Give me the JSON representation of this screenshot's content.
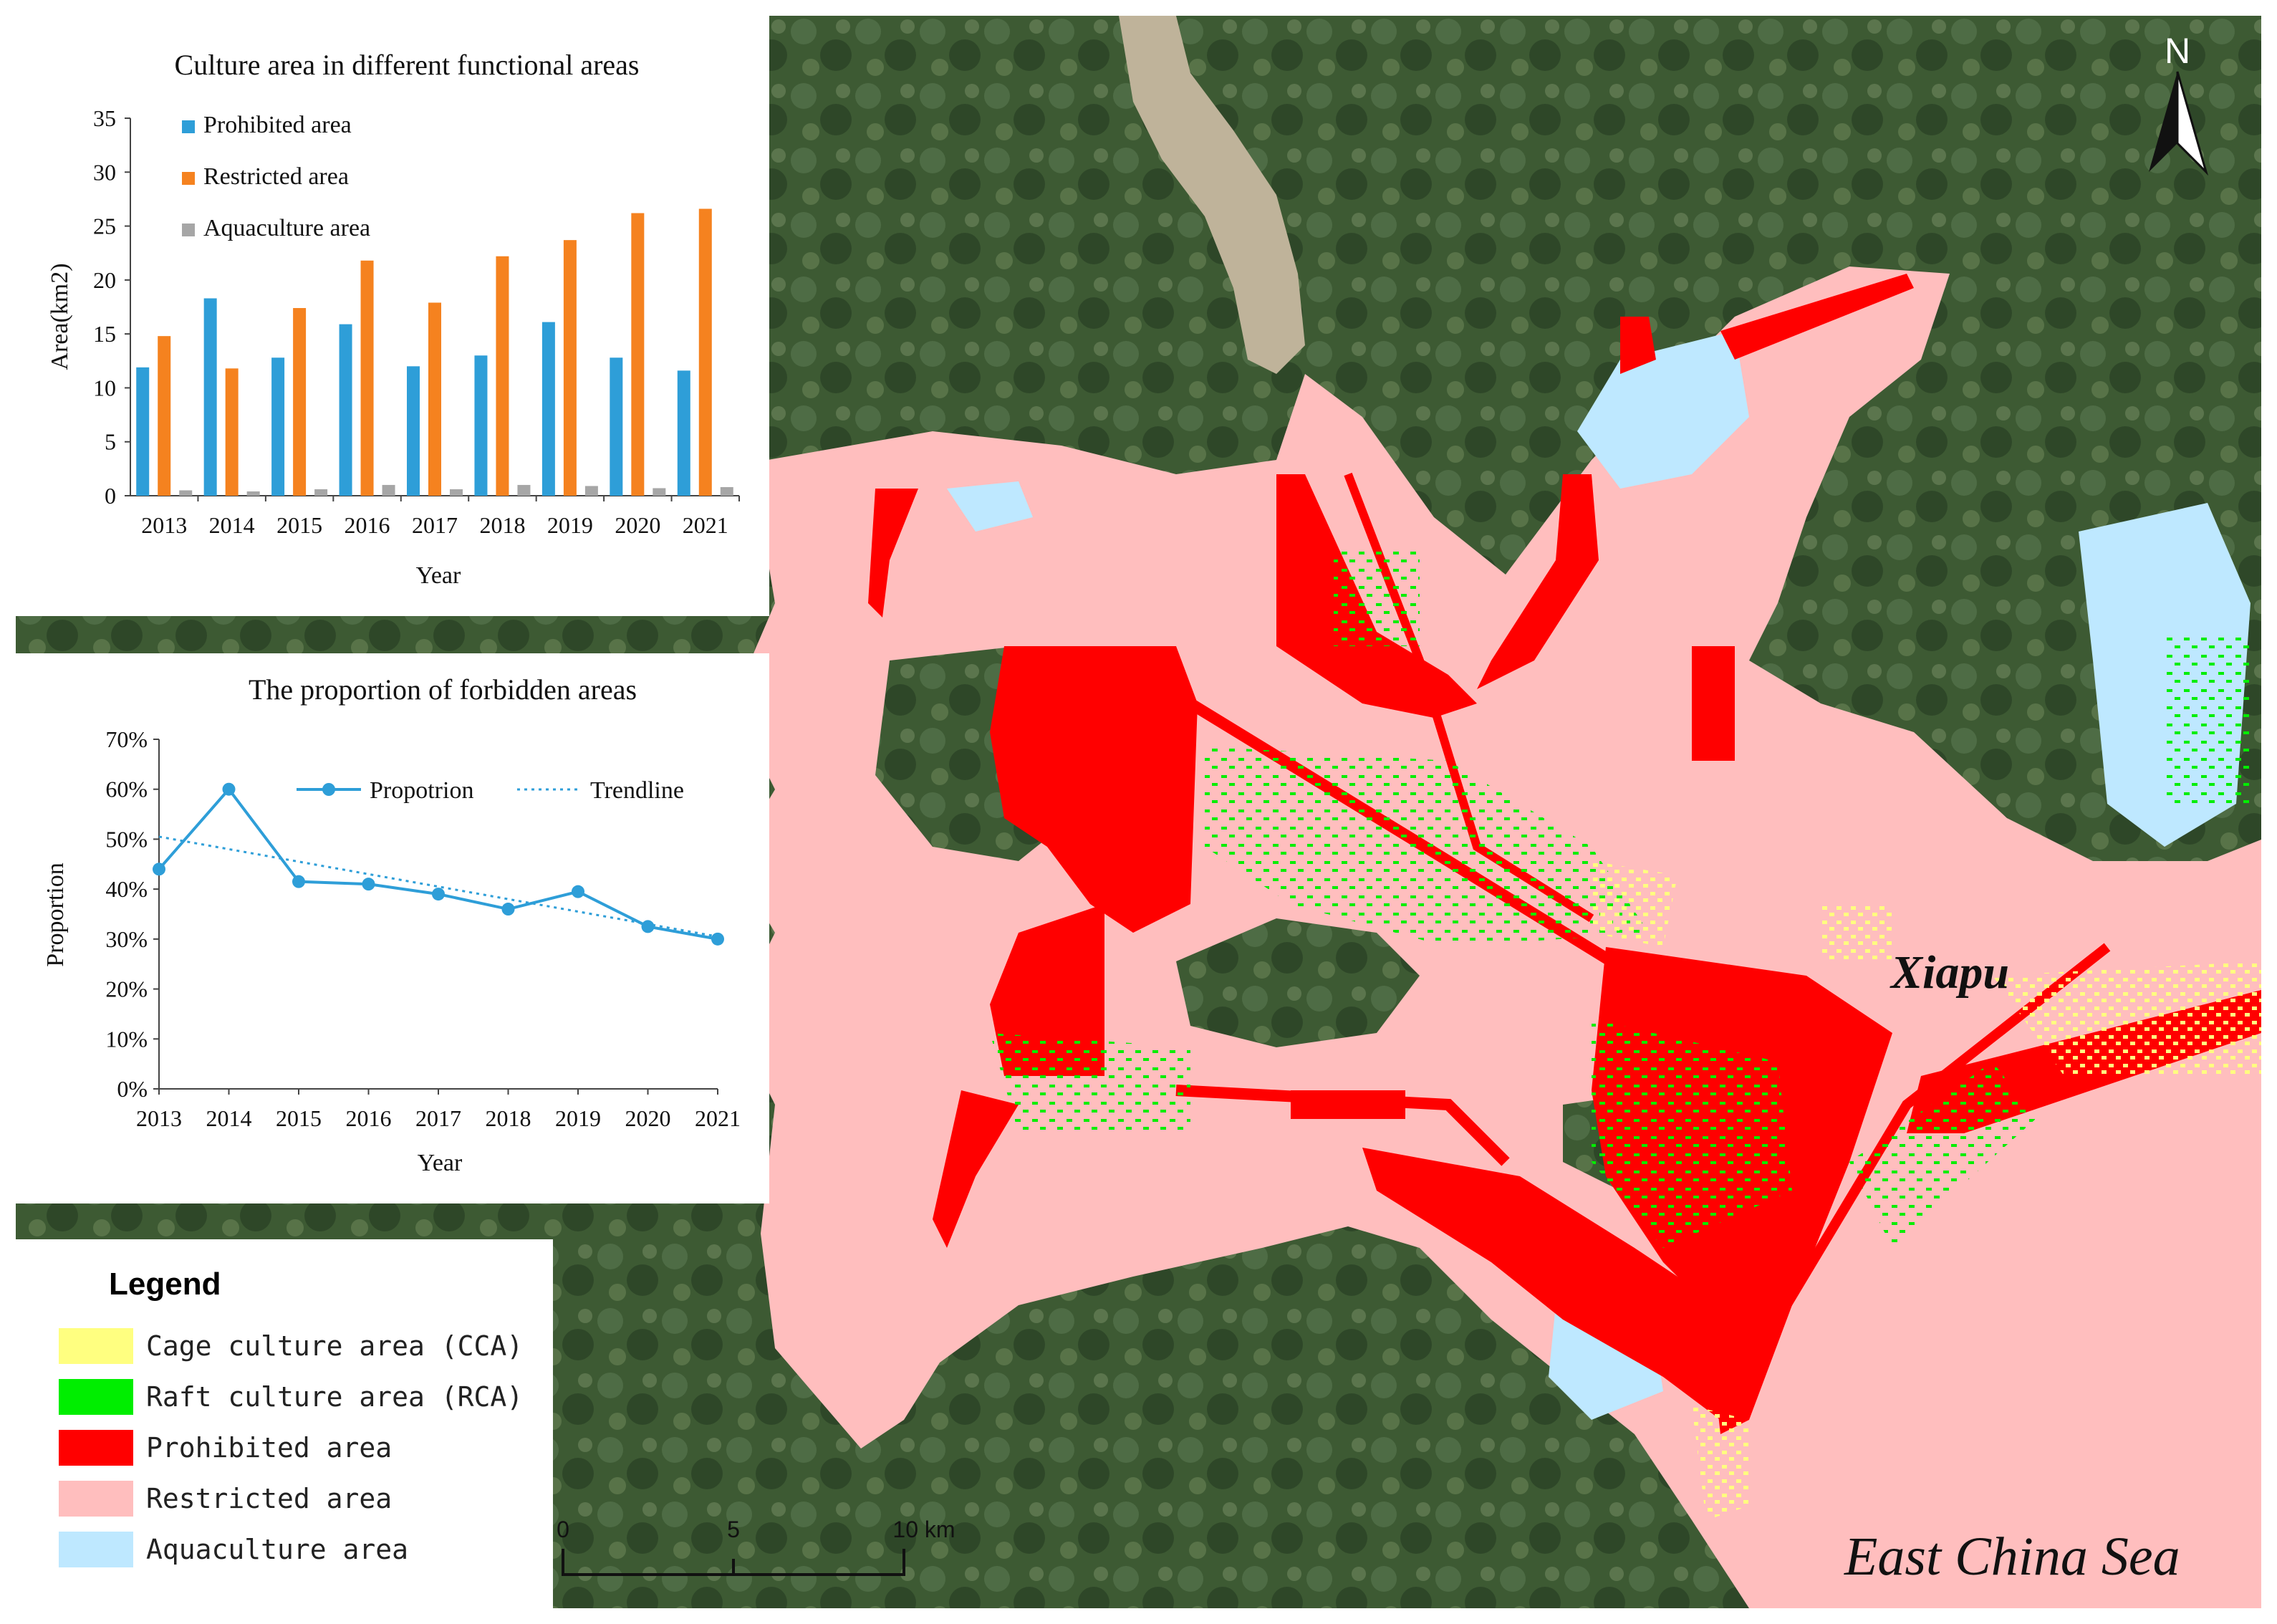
{
  "bar_chart": {
    "title": "Culture area in different functional areas",
    "ylabel": "Area(km2)",
    "xlabel": "Year",
    "legend": [
      "Prohibited area",
      "Restricted area",
      "Aquaculture area"
    ],
    "colors": [
      "#2e9ed8",
      "#f5821f",
      "#a6a6a6"
    ]
  },
  "line_chart": {
    "title": "The proportion of forbidden areas",
    "ylabel": "Proportion",
    "xlabel": "Year",
    "legend": [
      "Propotrion",
      "Trendline"
    ],
    "color": "#2e9ed8"
  },
  "chart_data": [
    {
      "type": "bar",
      "title": "Culture area in different functional areas",
      "xlabel": "Year",
      "ylabel": "Area(km2)",
      "categories": [
        "2013",
        "2014",
        "2015",
        "2016",
        "2017",
        "2018",
        "2019",
        "2020",
        "2021"
      ],
      "ylim": [
        0,
        35
      ],
      "yticks": [
        0,
        5,
        10,
        15,
        20,
        25,
        30,
        35
      ],
      "legend_position": "top-left",
      "series": [
        {
          "name": "Prohibited area",
          "values": [
            11.9,
            18.3,
            12.8,
            15.9,
            12.0,
            13.0,
            16.1,
            12.8,
            11.6
          ]
        },
        {
          "name": "Restricted area",
          "values": [
            14.8,
            11.8,
            17.4,
            21.8,
            17.9,
            22.2,
            23.7,
            26.2,
            26.6
          ]
        },
        {
          "name": "Aquaculture area",
          "values": [
            0.5,
            0.4,
            0.6,
            1.0,
            0.6,
            1.0,
            0.9,
            0.7,
            0.8
          ]
        }
      ],
      "grid": false
    },
    {
      "type": "line",
      "title": "The proportion of forbidden areas",
      "xlabel": "Year",
      "ylabel": "Proportion",
      "x": [
        "2013",
        "2014",
        "2015",
        "2016",
        "2017",
        "2018",
        "2019",
        "2020",
        "2021"
      ],
      "ylim": [
        0,
        0.7
      ],
      "yticks": [
        "0%",
        "10%",
        "20%",
        "30%",
        "40%",
        "50%",
        "60%",
        "70%"
      ],
      "legend_position": "top",
      "series": [
        {
          "name": "Propotrion",
          "values": [
            0.44,
            0.6,
            0.415,
            0.41,
            0.39,
            0.36,
            0.395,
            0.325,
            0.3
          ]
        },
        {
          "name": "Trendline",
          "style": "dotted",
          "values": [
            0.505,
            0.48,
            0.455,
            0.43,
            0.405,
            0.38,
            0.355,
            0.33,
            0.305
          ]
        }
      ],
      "grid": false
    }
  ],
  "legend": {
    "title": "Legend",
    "items": [
      {
        "label": "Cage culture area (CCA)",
        "color": "#ffff80"
      },
      {
        "label": "Raft culture area (RCA)",
        "color": "#00ee00"
      },
      {
        "label": "Prohibited area",
        "color": "#ff0000"
      },
      {
        "label": "Restricted area",
        "color": "#ffbebe"
      },
      {
        "label": "Aquaculture area",
        "color": "#bee8ff"
      }
    ]
  },
  "scale_bar": {
    "labels": [
      "0",
      "5",
      "10 km"
    ]
  },
  "north_arrow": {
    "label": "N"
  },
  "map_labels": {
    "town": "Xiapu",
    "sea": "East China Sea"
  },
  "map_colors": {
    "land": "#3d5a33",
    "land_light": "#5d7a4e",
    "prohibited": "#ff0000",
    "restricted": "#ffbebe",
    "aquaculture": "#bee8ff",
    "cage": "#ffff80",
    "raft": "#00ee00",
    "river": "#bfb39a"
  }
}
